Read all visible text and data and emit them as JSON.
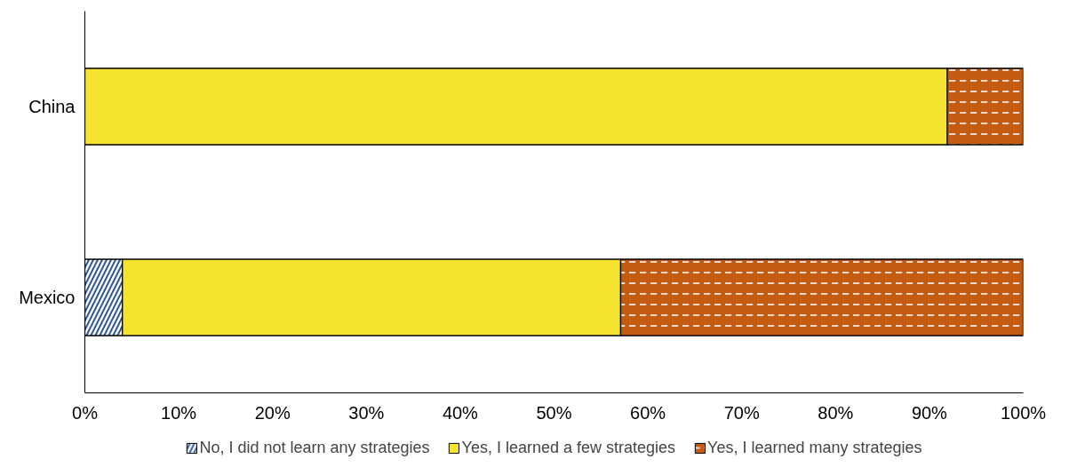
{
  "chart_data": {
    "type": "bar",
    "orientation": "horizontal",
    "stacked": true,
    "categories": [
      "China",
      "Mexico"
    ],
    "series": [
      {
        "name": "No, I did not learn any strategies",
        "color": "#2e5597",
        "values": [
          0,
          4.0
        ]
      },
      {
        "name": "Yes, I learned a few strategies",
        "color": "#f5e42f",
        "values": [
          91.9,
          53.1
        ]
      },
      {
        "name": "Yes, I learned many strategies",
        "color": "#c55a11",
        "values": [
          8.1,
          42.9
        ]
      }
    ],
    "xlim": [
      0,
      100
    ],
    "xticks": [
      {
        "value": 0,
        "label": "0%"
      },
      {
        "value": 10,
        "label": "10%"
      },
      {
        "value": 20,
        "label": "20%"
      },
      {
        "value": 30,
        "label": "30%"
      },
      {
        "value": 40,
        "label": "40%"
      },
      {
        "value": 50,
        "label": "50%"
      },
      {
        "value": 60,
        "label": "60%"
      },
      {
        "value": 70,
        "label": "70%"
      },
      {
        "value": 80,
        "label": "80%"
      },
      {
        "value": 90,
        "label": "90%"
      },
      {
        "value": 100,
        "label": "100%"
      }
    ],
    "grid": false,
    "legend": "bottom"
  }
}
